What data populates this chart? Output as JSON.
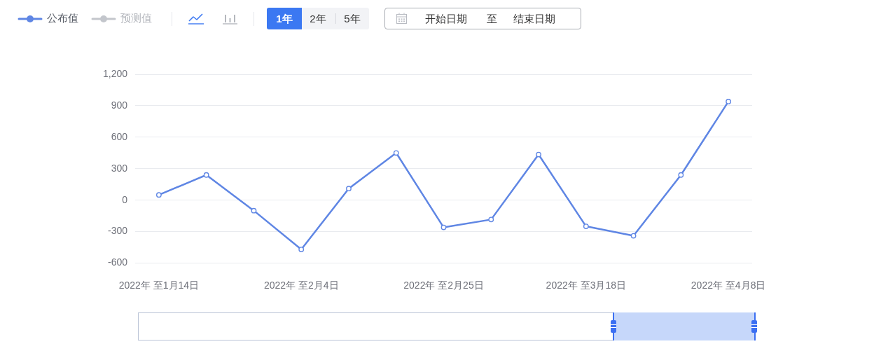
{
  "chart_data": {
    "type": "line",
    "categories": [
      "2022年 至1月14日",
      null,
      null,
      "2022年 至2月4日",
      null,
      null,
      "2022年 至2月25日",
      null,
      null,
      "2022年 至3月18日",
      null,
      null,
      "2022年 至4月8日"
    ],
    "series": [
      {
        "name": "公布值",
        "color": "#5f86e4",
        "values": [
          50,
          240,
          -100,
          -470,
          110,
          450,
          -260,
          -185,
          435,
          -250,
          -340,
          240,
          940
        ]
      },
      {
        "name": "预测值",
        "color": "#c3c6cc",
        "values": [
          null,
          null,
          null,
          null,
          null,
          null,
          null,
          null,
          null,
          null,
          null,
          null,
          null
        ]
      }
    ],
    "ylim": [
      -600,
      1200
    ],
    "yticks": [
      -600,
      -300,
      0,
      300,
      600,
      900,
      {
        "value": 1200,
        "label": "1,200"
      }
    ],
    "grid": "y",
    "legend": "top left",
    "marker": "circle",
    "line_style": "solid",
    "annotations": [
      "1年",
      "2年",
      "5年",
      "开始日期",
      "至",
      "结束日期"
    ]
  }
}
